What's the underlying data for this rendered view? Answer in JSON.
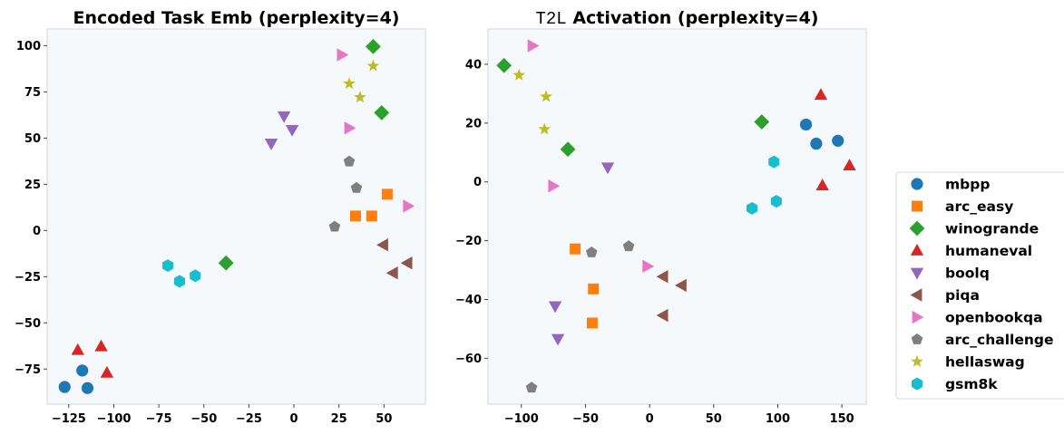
{
  "colors": {
    "mbpp": "#1f77b4",
    "arc_easy": "#ff7f0e",
    "winogrande": "#2ca02c",
    "humaneval": "#d62728",
    "boolq": "#9467bd",
    "piqa": "#8c564b",
    "openbookqa": "#e377c2",
    "arc_challenge": "#7f7f7f",
    "hellaswag": "#bcbd22",
    "gsm8k": "#17becf",
    "plot_bg": "#f5f9fb",
    "frame": "#d8dee3"
  },
  "legend": {
    "placement": "right",
    "entries": [
      {
        "key": "mbpp",
        "label": "mbpp",
        "marker": "circle"
      },
      {
        "key": "arc_easy",
        "label": "arc_easy",
        "marker": "square"
      },
      {
        "key": "winogrande",
        "label": "winogrande",
        "marker": "diamond"
      },
      {
        "key": "humaneval",
        "label": "humaneval",
        "marker": "triangle-up"
      },
      {
        "key": "boolq",
        "label": "boolq",
        "marker": "triangle-down"
      },
      {
        "key": "piqa",
        "label": "piqa",
        "marker": "triangle-left"
      },
      {
        "key": "openbookqa",
        "label": "openbookqa",
        "marker": "triangle-right"
      },
      {
        "key": "arc_challenge",
        "label": "arc_challenge",
        "marker": "pentagon"
      },
      {
        "key": "hellaswag",
        "label": "hellaswag",
        "marker": "star"
      },
      {
        "key": "gsm8k",
        "label": "gsm8k",
        "marker": "hexagon"
      }
    ]
  },
  "chart_data": [
    {
      "type": "scatter",
      "title_prefix": "",
      "title": "Encoded Task Emb (perplexity=4)",
      "xlabel": "",
      "ylabel": "",
      "xlim": [
        -137,
        73
      ],
      "ylim": [
        -94,
        109
      ],
      "xticks": [
        -125,
        -100,
        -75,
        -50,
        -25,
        0,
        25,
        50
      ],
      "yticks": [
        -75,
        -50,
        -25,
        0,
        25,
        50,
        75,
        100
      ],
      "xtick_labels": [
        "−125",
        "−100",
        "−75",
        "−50",
        "−25",
        "0",
        "25",
        "50"
      ],
      "ytick_labels": [
        "−75",
        "−50",
        "−25",
        "0",
        "25",
        "50",
        "75",
        "100"
      ],
      "grid": false,
      "series": [
        {
          "name": "mbpp",
          "points": [
            [
              -117.5,
              -75.8
            ],
            [
              -127.3,
              -84.7
            ],
            [
              -114.6,
              -85.3
            ]
          ]
        },
        {
          "name": "arc_easy",
          "points": [
            [
              51.8,
              19.6
            ],
            [
              34.2,
              7.8
            ],
            [
              43.2,
              7.8
            ]
          ]
        },
        {
          "name": "winogrande",
          "points": [
            [
              44,
              99.5
            ],
            [
              48.7,
              63.7
            ],
            [
              -37.7,
              -17.6
            ]
          ]
        },
        {
          "name": "humaneval",
          "points": [
            [
              -120,
              -64.7
            ],
            [
              -107,
              -62.7
            ],
            [
              -103.8,
              -77
            ]
          ]
        },
        {
          "name": "boolq",
          "points": [
            [
              -5.5,
              61.8
            ],
            [
              -1,
              54.4
            ],
            [
              -12.6,
              47
            ]
          ]
        },
        {
          "name": "piqa",
          "points": [
            [
              49.6,
              -7.8
            ],
            [
              63,
              -17.6
            ],
            [
              55,
              -23
            ]
          ]
        },
        {
          "name": "openbookqa",
          "points": [
            [
              26.6,
              95
            ],
            [
              30.7,
              55.4
            ],
            [
              63.3,
              13.2
            ]
          ]
        },
        {
          "name": "arc_challenge",
          "points": [
            [
              30.7,
              37.3
            ],
            [
              34.7,
              23
            ],
            [
              22.6,
              2
            ]
          ]
        },
        {
          "name": "hellaswag",
          "points": [
            [
              44,
              89
            ],
            [
              30.7,
              79.4
            ],
            [
              36.7,
              72
            ]
          ]
        },
        {
          "name": "gsm8k",
          "points": [
            [
              -70,
              -19
            ],
            [
              -63.5,
              -27.5
            ],
            [
              -54.8,
              -24.5
            ]
          ]
        }
      ]
    },
    {
      "type": "scatter",
      "title_prefix": "T2L",
      "title": " Activation (perplexity=4)",
      "xlabel": "",
      "ylabel": "",
      "xlim": [
        -126,
        169
      ],
      "ylim": [
        -75.6,
        52
      ],
      "xticks": [
        -100,
        -50,
        0,
        50,
        100,
        150
      ],
      "yticks": [
        -60,
        -40,
        -20,
        0,
        20,
        40
      ],
      "xtick_labels": [
        "−100",
        "−50",
        "0",
        "50",
        "100",
        "150"
      ],
      "ytick_labels": [
        "−60",
        "−40",
        "−20",
        "0",
        "20",
        "40"
      ],
      "grid": false,
      "series": [
        {
          "name": "mbpp",
          "points": [
            [
              122,
              19.5
            ],
            [
              130,
              13
            ],
            [
              146.9,
              14
            ]
          ]
        },
        {
          "name": "arc_easy",
          "points": [
            [
              -58,
              -22.8
            ],
            [
              -43.8,
              -36.4
            ],
            [
              -44.7,
              -48
            ]
          ]
        },
        {
          "name": "winogrande",
          "points": [
            [
              -113.5,
              39.6
            ],
            [
              -63.7,
              11.1
            ],
            [
              87.5,
              20.4
            ]
          ]
        },
        {
          "name": "humaneval",
          "points": [
            [
              133.6,
              29.6
            ],
            [
              155.9,
              5.6
            ],
            [
              134.8,
              -1.2
            ]
          ]
        },
        {
          "name": "boolq",
          "points": [
            [
              -32.6,
              4.9
            ],
            [
              -73.6,
              -42.3
            ],
            [
              -71.5,
              -53.4
            ]
          ]
        },
        {
          "name": "piqa",
          "points": [
            [
              10.6,
              -32.2
            ],
            [
              25,
              -35.2
            ],
            [
              10.6,
              -45.4
            ]
          ]
        },
        {
          "name": "openbookqa",
          "points": [
            [
              -91.3,
              46.3
            ],
            [
              -75.2,
              -1.4
            ],
            [
              -1.7,
              -28.7
            ]
          ]
        },
        {
          "name": "arc_challenge",
          "points": [
            [
              -45.2,
              -24
            ],
            [
              -16.3,
              -21.9
            ],
            [
              -92,
              -70
            ]
          ]
        },
        {
          "name": "hellaswag",
          "points": [
            [
              -101.8,
              36.3
            ],
            [
              -80.7,
              29
            ],
            [
              -82,
              17.9
            ]
          ]
        },
        {
          "name": "gsm8k",
          "points": [
            [
              97,
              6.8
            ],
            [
              98.9,
              -6.6
            ],
            [
              79.9,
              -9
            ]
          ]
        }
      ]
    }
  ]
}
